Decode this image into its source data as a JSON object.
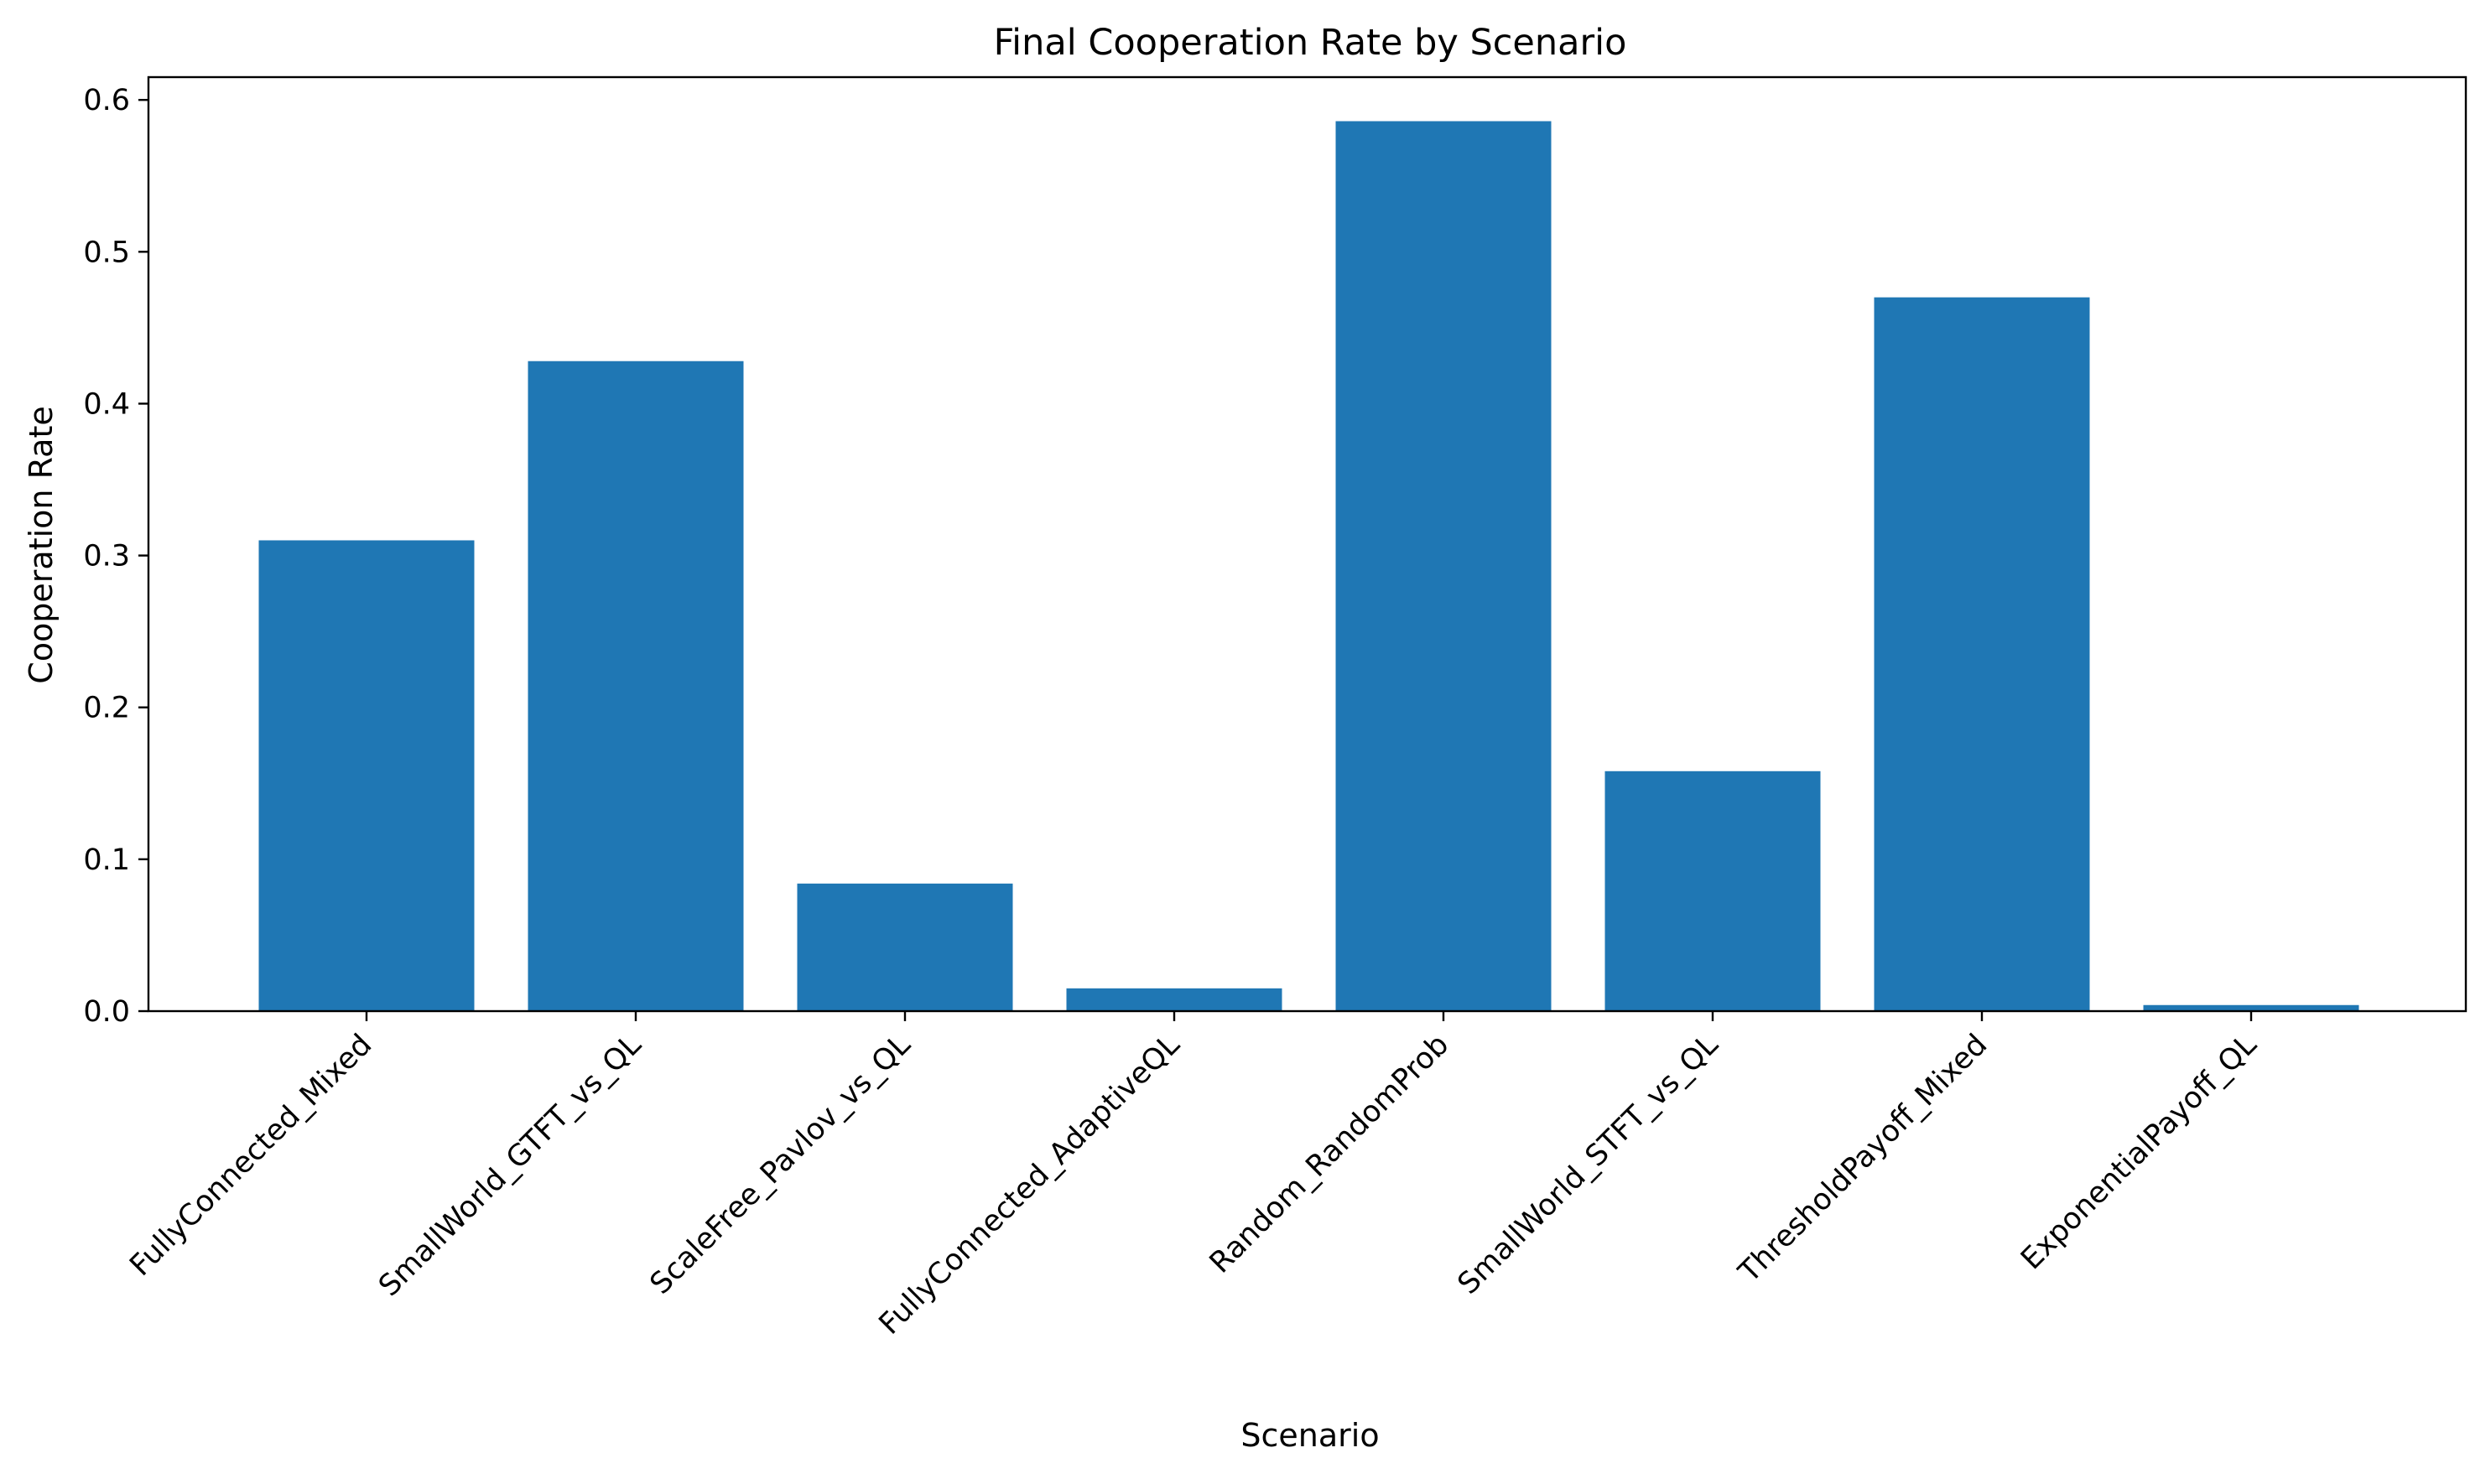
{
  "chart_data": {
    "type": "bar",
    "title": "Final Cooperation Rate by Scenario",
    "xlabel": "Scenario",
    "ylabel": "Cooperation Rate",
    "categories": [
      "FullyConnected_Mixed",
      "SmallWorld_GTFT_vs_QL",
      "ScaleFree_Pavlov_vs_QL",
      "FullyConnected_AdaptiveQL",
      "Random_RandomProb",
      "SmallWorld_STFT_vs_QL",
      "ThresholdPayoff_Mixed",
      "ExponentialPayoff_QL"
    ],
    "values": [
      0.31,
      0.428,
      0.084,
      0.015,
      0.586,
      0.158,
      0.47,
      0.004
    ],
    "ylim": [
      0,
      0.615
    ],
    "yticks": [
      "0.0",
      "0.1",
      "0.2",
      "0.3",
      "0.4",
      "0.5",
      "0.6"
    ],
    "bar_color": "#1f77b4",
    "grid": false,
    "legend": false
  }
}
